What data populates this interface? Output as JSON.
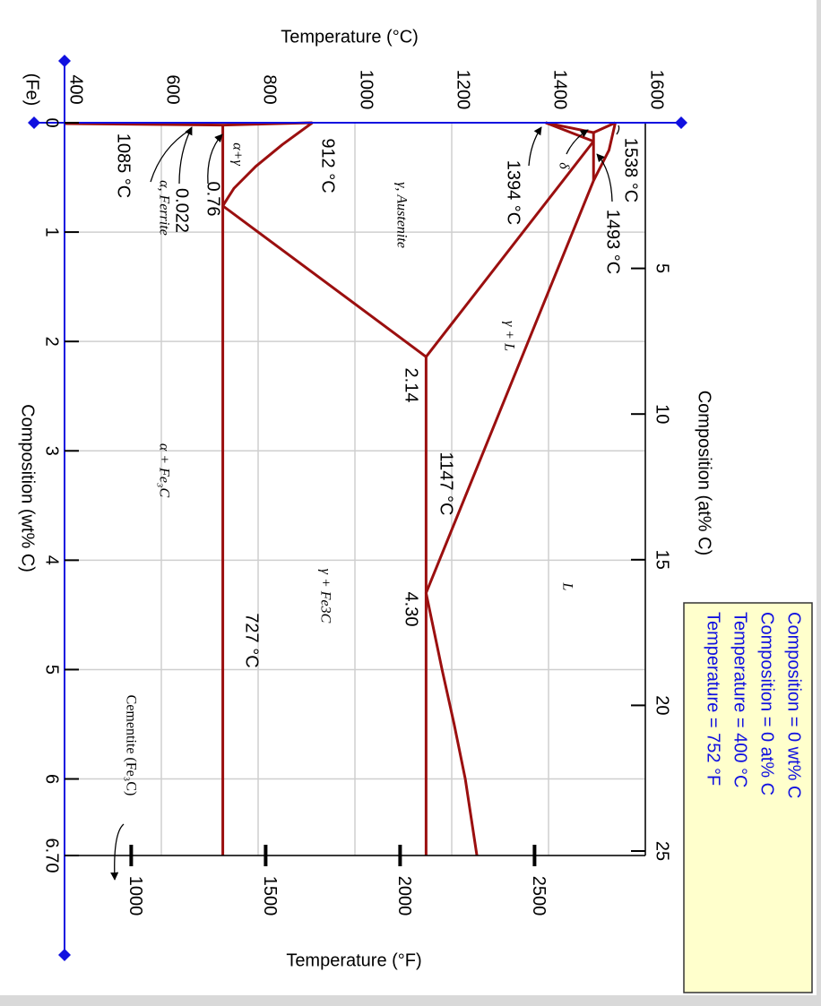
{
  "axes": {
    "temperature_c": {
      "label": "Temperature (°C)",
      "lim": [
        400,
        1600
      ],
      "ticks": [
        400,
        600,
        800,
        1000,
        1200,
        1400,
        1600
      ]
    },
    "composition_wt": {
      "label": "Composition (wt% C)",
      "origin_label": "(Fe)",
      "lim": [
        0,
        6.7
      ],
      "ticks": [
        0,
        1,
        2,
        3,
        4,
        5,
        6,
        {
          "value": 6.7,
          "label": "6.70"
        }
      ]
    },
    "composition_at": {
      "label": "Composition (at% C)",
      "lim": [
        0,
        25
      ],
      "ticks": [
        5,
        10,
        15,
        20,
        25
      ]
    },
    "temperature_f": {
      "label": "Temperature (°F)",
      "ticks": [
        1000,
        1500,
        2000,
        2500
      ]
    }
  },
  "phase_lines": [
    {
      "wt": [
        0,
        0.25,
        0.53
      ],
      "temp": [
        1538,
        1525,
        1493
      ]
    },
    {
      "wt": [
        0,
        0.09
      ],
      "temp": [
        1538,
        1493
      ]
    },
    {
      "wt": [
        0.09,
        0.53
      ],
      "temp": [
        1493,
        1493
      ]
    },
    {
      "wt": [
        0,
        0.09
      ],
      "temp": [
        1394,
        1493
      ]
    },
    {
      "wt": [
        0,
        0.17
      ],
      "temp": [
        1394,
        1493
      ]
    },
    {
      "wt": [
        0.53,
        4.3,
        5.0,
        5.5,
        6.0,
        6.7
      ],
      "temp": [
        1493,
        1147,
        1180,
        1205,
        1228,
        1252
      ]
    },
    {
      "wt": [
        0.17,
        2.14
      ],
      "temp": [
        1493,
        1147
      ]
    },
    {
      "wt": [
        2.14,
        6.7
      ],
      "temp": [
        1147,
        1147
      ]
    },
    {
      "wt": [
        0,
        0.2,
        0.4,
        0.6,
        0.76
      ],
      "temp": [
        912,
        850,
        795,
        750,
        727
      ]
    },
    {
      "wt": [
        0.76,
        2.14
      ],
      "temp": [
        727,
        1147
      ]
    },
    {
      "wt": [
        0.022,
        6.7
      ],
      "temp": [
        727,
        727
      ]
    },
    {
      "wt": [
        0,
        0.022,
        0.008
      ],
      "temp": [
        912,
        727,
        400
      ]
    }
  ],
  "labels": [
    "1538 °C",
    "1493 °C",
    "1394 °C",
    "δ",
    "912 °C",
    "γ, Austenite",
    "γ + L",
    "2.14",
    "1147 °C",
    "4.30",
    "727 °C",
    "γ + Fe3C",
    "L",
    "α + Fe₃C",
    "α+γ",
    "0.76",
    "0.022",
    "α, Ferrite",
    "1085 °C",
    "Cementite (Fe₃C)"
  ],
  "info_box": [
    "Composition = 0 wt% C",
    "Composition = 0 at% C",
    "Temperature = 400 °C",
    "Temperature = 752 °F"
  ]
}
